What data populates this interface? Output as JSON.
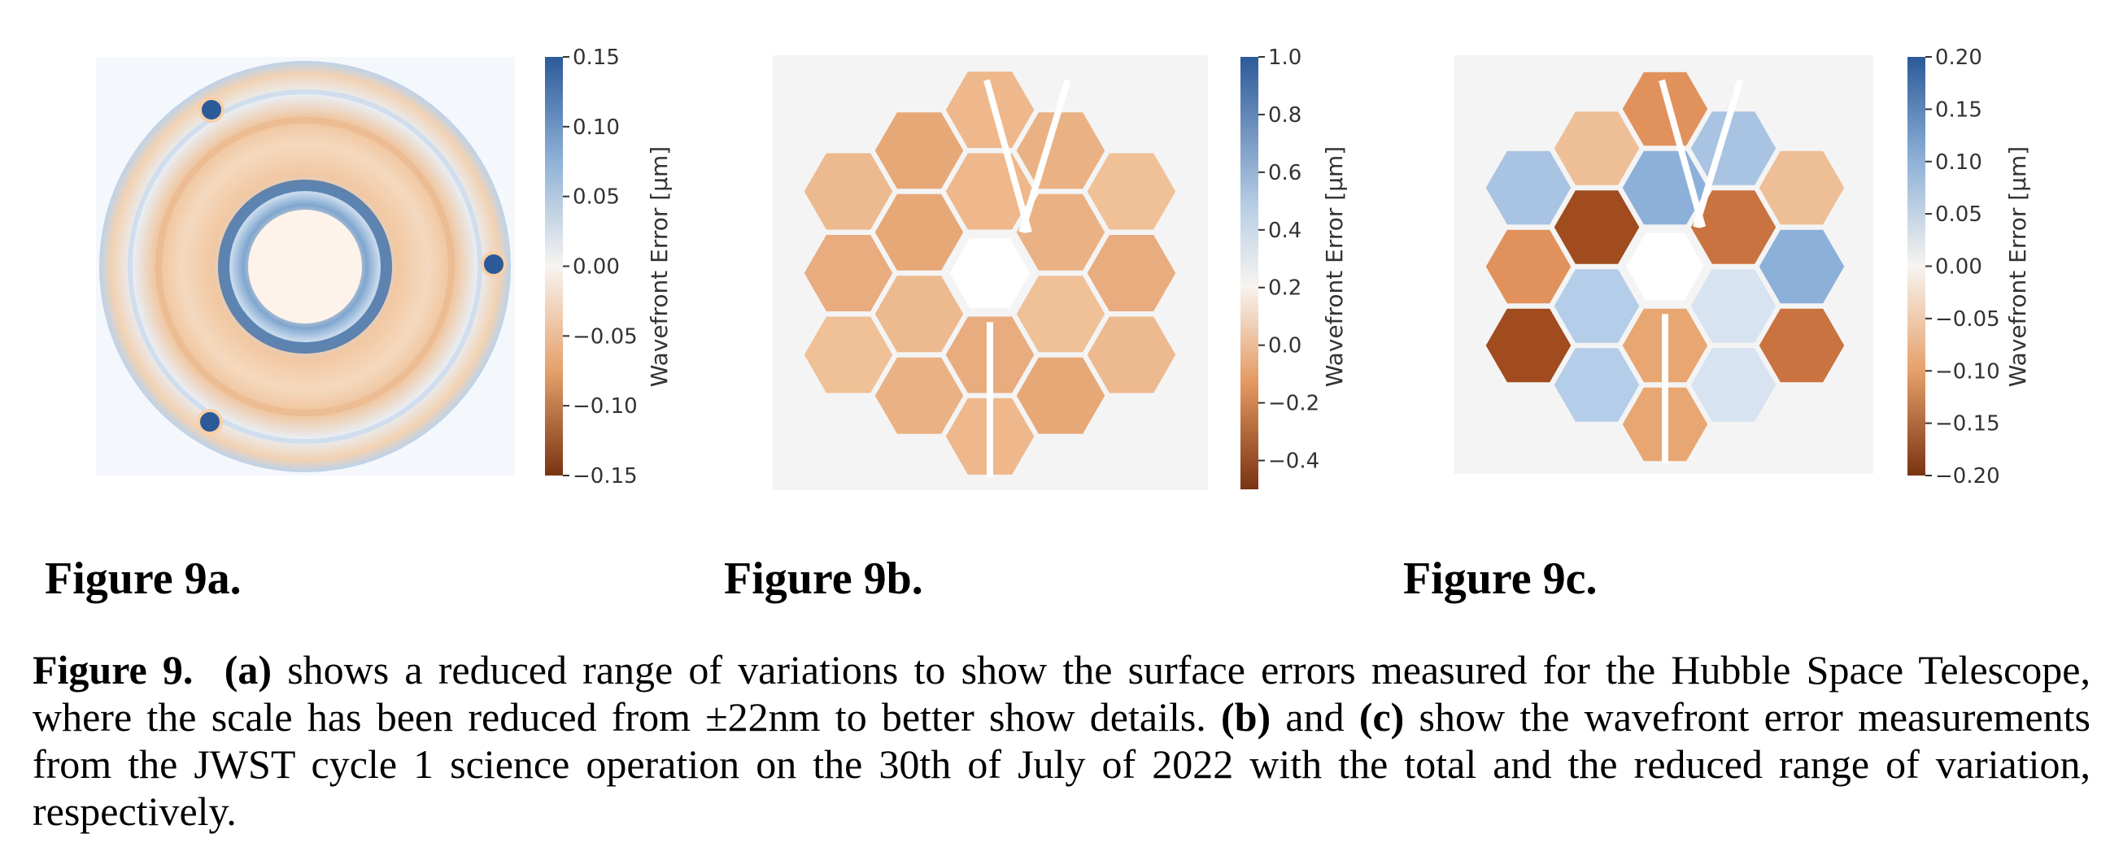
{
  "panels": [
    {
      "id": "a",
      "label": "Figure 9a.",
      "colorbar": {
        "title": "Wavefront Error [μm]",
        "ticks": [
          "0.15",
          "0.10",
          "0.05",
          "0.00",
          "−0.05",
          "−0.10",
          "−0.15"
        ],
        "range": [
          -0.15,
          0.15
        ]
      }
    },
    {
      "id": "b",
      "label": "Figure 9b.",
      "colorbar": {
        "title": "Wavefront Error [μm]",
        "ticks": [
          "1.0",
          "0.8",
          "0.6",
          "0.4",
          "0.2",
          "0.0",
          "−0.2",
          "−0.4"
        ],
        "range": [
          -0.5,
          1.0
        ]
      }
    },
    {
      "id": "c",
      "label": "Figure 9c.",
      "colorbar": {
        "title": "Wavefront Error [μm]",
        "ticks": [
          "0.20",
          "0.15",
          "0.10",
          "0.05",
          "0.00",
          "−0.05",
          "−0.10",
          "−0.15",
          "−0.20"
        ],
        "range": [
          -0.2,
          0.2
        ]
      }
    }
  ],
  "caption": {
    "lead": "Figure 9.",
    "a": "(a)",
    "text1": " shows a reduced range of variations to show the surface errors measured for the Hubble Space Telescope, where the scale has been reduced from ±22nm to better show details. ",
    "b": "(b)",
    "and": " and ",
    "c": "(c)",
    "text2": " show the wavefront error measurements from the JWST cycle 1 science operation on the 30th of July of 2022 with the total and the reduced range of variation, respectively."
  },
  "colors": {
    "blue_dark": "#2c5a99",
    "blue_light": "#d6e4f2",
    "neutral": "#f7f4f0",
    "orange_light": "#f2cfae",
    "orange_dark": "#7a3312"
  }
}
